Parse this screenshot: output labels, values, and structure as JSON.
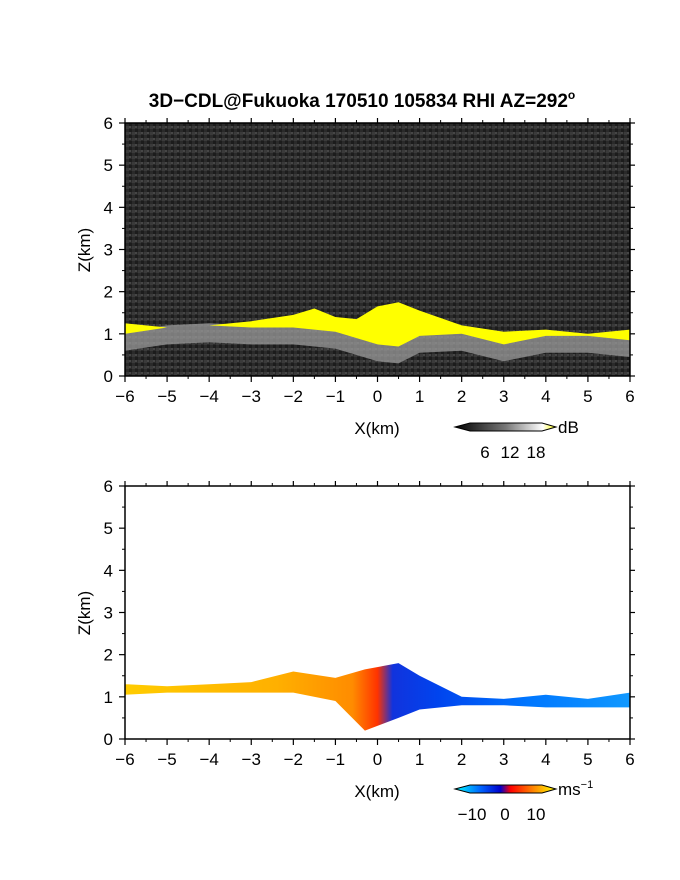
{
  "title": "3D−CDL@Fukuoka 170510 105834 RHI AZ=292",
  "title_sup": "o",
  "chart_data": [
    {
      "type": "heatmap",
      "panel": "reflectivity",
      "xlabel": "X(km)",
      "ylabel": "Z(km)",
      "xlim": [
        -6,
        6
      ],
      "ylim": [
        0,
        6
      ],
      "xticks": [
        -6,
        -5,
        -4,
        -3,
        -2,
        -1,
        0,
        1,
        2,
        3,
        4,
        5,
        6
      ],
      "yticks": [
        0,
        1,
        2,
        3,
        4,
        5,
        6
      ],
      "xtick_labels": [
        "−6",
        "−5",
        "−4",
        "−3",
        "−2",
        "−1",
        "0",
        "1",
        "2",
        "3",
        "4",
        "5",
        "6"
      ],
      "ytick_labels": [
        "0",
        "1",
        "2",
        "3",
        "4",
        "5",
        "6"
      ],
      "colorbar": {
        "unit": "dB",
        "ticks": [
          6,
          12,
          18
        ],
        "tick_labels": [
          "6",
          "12",
          "18"
        ],
        "colors": [
          "#000000",
          "#777777",
          "#ffffff",
          "#ffff00"
        ]
      },
      "background_color": "#2a2a2a",
      "high_color": "#ffff00",
      "layer_top_km": [
        [
          -6,
          1.25
        ],
        [
          -5,
          1.15
        ],
        [
          -4,
          1.2
        ],
        [
          -3,
          1.3
        ],
        [
          -2,
          1.45
        ],
        [
          -1.5,
          1.6
        ],
        [
          -1,
          1.4
        ],
        [
          -0.5,
          1.35
        ],
        [
          0,
          1.65
        ],
        [
          0.5,
          1.75
        ],
        [
          1,
          1.55
        ],
        [
          2,
          1.2
        ],
        [
          3,
          1.05
        ],
        [
          4,
          1.1
        ],
        [
          5,
          1.0
        ],
        [
          6,
          1.1
        ]
      ],
      "layer_bottom_km": [
        [
          -6,
          0.85
        ],
        [
          -5,
          1.0
        ],
        [
          -4,
          1.05
        ],
        [
          -3,
          1.0
        ],
        [
          -2,
          1.0
        ],
        [
          -1,
          0.9
        ],
        [
          0,
          0.6
        ],
        [
          0.5,
          0.55
        ],
        [
          1,
          0.8
        ],
        [
          2,
          0.85
        ],
        [
          3,
          0.6
        ],
        [
          4,
          0.8
        ],
        [
          5,
          0.8
        ],
        [
          6,
          0.7
        ]
      ]
    },
    {
      "type": "heatmap",
      "panel": "doppler_velocity",
      "xlabel": "X(km)",
      "ylabel": "Z(km)",
      "xlim": [
        -6,
        6
      ],
      "ylim": [
        0,
        6
      ],
      "xticks": [
        -6,
        -5,
        -4,
        -3,
        -2,
        -1,
        0,
        1,
        2,
        3,
        4,
        5,
        6
      ],
      "yticks": [
        0,
        1,
        2,
        3,
        4,
        5,
        6
      ],
      "xtick_labels": [
        "−6",
        "−5",
        "−4",
        "−3",
        "−2",
        "−1",
        "0",
        "1",
        "2",
        "3",
        "4",
        "5",
        "6"
      ],
      "ytick_labels": [
        "0",
        "1",
        "2",
        "3",
        "4",
        "5",
        "6"
      ],
      "colorbar": {
        "unit": "ms",
        "unit_sup": "−1",
        "ticks": [
          -10,
          0,
          10
        ],
        "tick_labels": [
          "−10",
          "0",
          "10"
        ],
        "colors": [
          "#00ffff",
          "#0066ff",
          "#0000cc",
          "#ff0000",
          "#ff8800",
          "#ffff00"
        ]
      },
      "background_color": "#ffffff",
      "layer_top_km": [
        [
          -6,
          1.3
        ],
        [
          -5,
          1.25
        ],
        [
          -4,
          1.3
        ],
        [
          -3,
          1.35
        ],
        [
          -2,
          1.6
        ],
        [
          -1,
          1.45
        ],
        [
          -0.3,
          1.65
        ],
        [
          0.5,
          1.8
        ],
        [
          1,
          1.5
        ],
        [
          2,
          1.0
        ],
        [
          3,
          0.95
        ],
        [
          4,
          1.05
        ],
        [
          5,
          0.95
        ],
        [
          6,
          1.1
        ]
      ],
      "layer_bottom_km": [
        [
          -6,
          1.05
        ],
        [
          -5,
          1.1
        ],
        [
          -4,
          1.1
        ],
        [
          -3,
          1.1
        ],
        [
          -2,
          1.1
        ],
        [
          -1,
          0.9
        ],
        [
          -0.3,
          0.2
        ],
        [
          0.5,
          0.5
        ],
        [
          1,
          0.7
        ],
        [
          2,
          0.8
        ],
        [
          3,
          0.8
        ],
        [
          4,
          0.75
        ],
        [
          5,
          0.75
        ],
        [
          6,
          0.75
        ]
      ]
    }
  ]
}
